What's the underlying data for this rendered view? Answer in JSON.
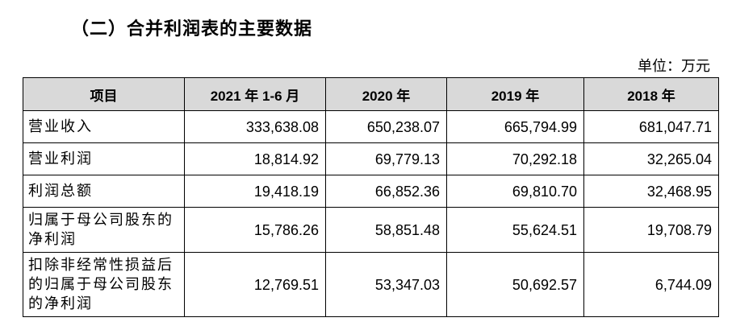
{
  "section_title": "（二）合并利润表的主要数据",
  "unit": "单位：万元",
  "table": {
    "headers": [
      "项目",
      "2021 年 1-6 月",
      "2020 年",
      "2019 年",
      "2018 年"
    ],
    "rows": [
      {
        "label": "营业收入",
        "values": [
          "333,638.08",
          "650,238.07",
          "665,794.99",
          "681,047.71"
        ]
      },
      {
        "label": "营业利润",
        "values": [
          "18,814.92",
          "69,779.13",
          "70,292.18",
          "32,265.04"
        ]
      },
      {
        "label": "利润总额",
        "values": [
          "19,418.19",
          "66,852.36",
          "69,810.70",
          "32,468.95"
        ]
      },
      {
        "label": "归属于母公司股东的净利润",
        "values": [
          "15,786.26",
          "58,851.48",
          "55,624.51",
          "19,708.79"
        ]
      },
      {
        "label": "扣除非经常性损益后的归属于母公司股东的净利润",
        "values": [
          "12,769.51",
          "53,347.03",
          "50,692.57",
          "6,744.09"
        ]
      }
    ]
  }
}
